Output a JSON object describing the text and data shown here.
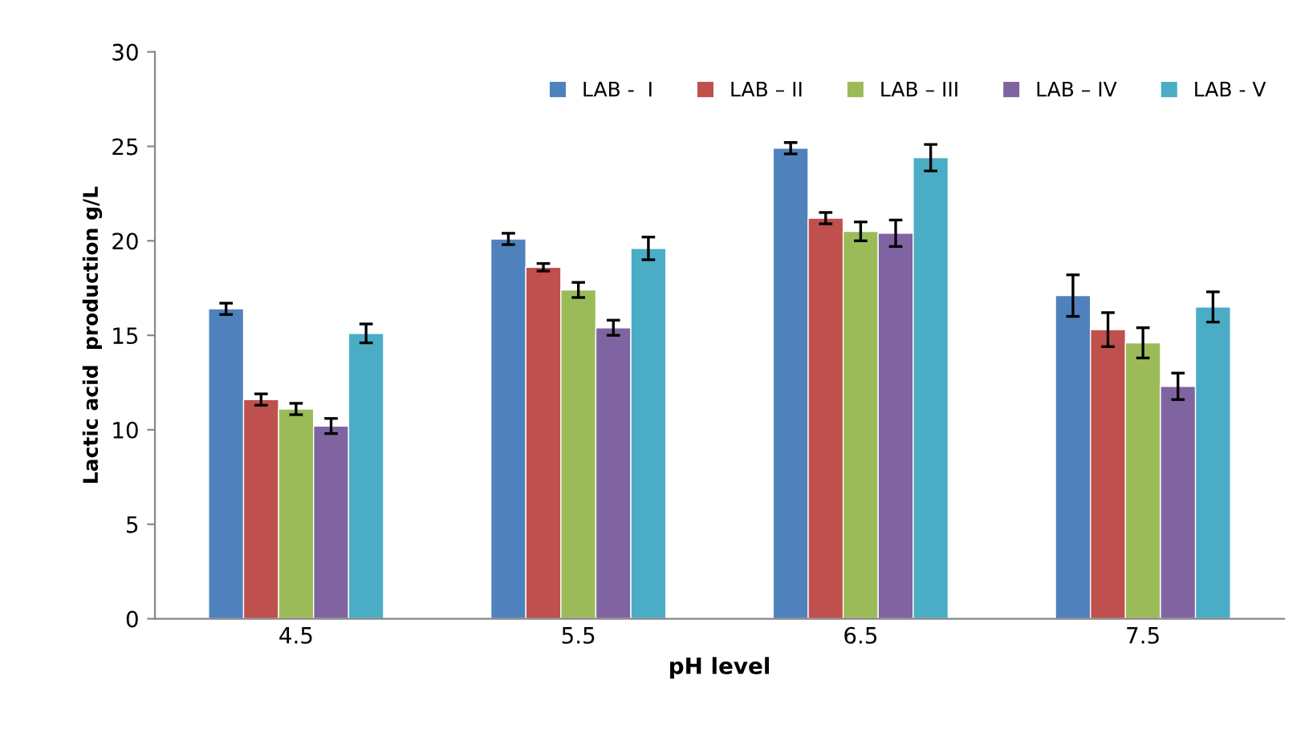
{
  "chart_data": {
    "type": "bar",
    "xlabel": "pH level",
    "ylabel": "Lactic acid  production g/L",
    "categories": [
      "4.5",
      "5.5",
      "6.5",
      "7.5"
    ],
    "series": [
      {
        "name": "LAB -  I",
        "color": "#4f81bd",
        "values": [
          16.4,
          20.1,
          24.9,
          17.1
        ],
        "errors": [
          0.3,
          0.3,
          0.3,
          1.1
        ]
      },
      {
        "name": "LAB – II",
        "color": "#c0504d",
        "values": [
          11.6,
          18.6,
          21.2,
          15.3
        ],
        "errors": [
          0.3,
          0.2,
          0.3,
          0.9
        ]
      },
      {
        "name": "LAB – III",
        "color": "#9bbb59",
        "values": [
          11.1,
          17.4,
          20.5,
          14.6
        ],
        "errors": [
          0.3,
          0.4,
          0.5,
          0.8
        ]
      },
      {
        "name": "LAB – IV",
        "color": "#8064a2",
        "values": [
          10.2,
          15.4,
          20.4,
          12.3
        ],
        "errors": [
          0.4,
          0.4,
          0.7,
          0.7
        ]
      },
      {
        "name": "LAB - V",
        "color": "#4bacc6",
        "values": [
          15.1,
          19.6,
          24.4,
          16.5
        ],
        "errors": [
          0.5,
          0.6,
          0.7,
          0.8
        ]
      }
    ],
    "ylim": [
      0,
      30
    ],
    "yticks": [
      0,
      5,
      10,
      15,
      20,
      25,
      30
    ],
    "grid": false,
    "legend": "top right"
  }
}
